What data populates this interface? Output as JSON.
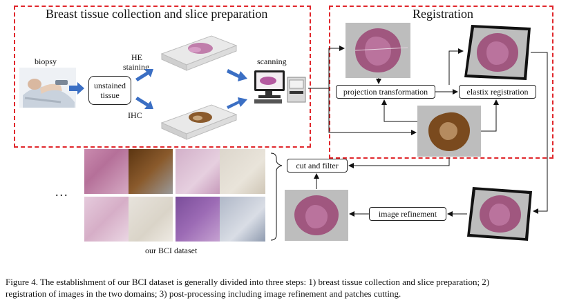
{
  "sections": {
    "collection_title": "Breast tissue collection and slice preparation",
    "registration_title": "Registration"
  },
  "labels": {
    "biopsy": "biopsy",
    "unstained_tissue": [
      "unstained",
      "tissue"
    ],
    "he_staining": [
      "HE",
      "staining"
    ],
    "ihc": "IHC",
    "scanning": "scanning",
    "ellipsis": "...",
    "dataset": "our BCI dataset"
  },
  "process_boxes": {
    "projection_transformation": "projection transformation",
    "elastix_registration": "elastix registration",
    "cut_and_filter": "cut and filter",
    "image_refinement": "image refinement"
  },
  "caption": [
    "Figure 4.  The establishment of our BCI dataset is generally divided into three steps: 1) breast tissue collection and slice preparation; 2)",
    "registration of images in the two domains; 3) post-processing including image refinement and patches cutting."
  ],
  "colors": {
    "dashed_border": "#e0262b",
    "arrow_blue": "#3b6fc4",
    "he_tissue": "#a0577f",
    "ihc_tissue": "#7a4a1e",
    "slide_gray": "#a9a9a9"
  }
}
